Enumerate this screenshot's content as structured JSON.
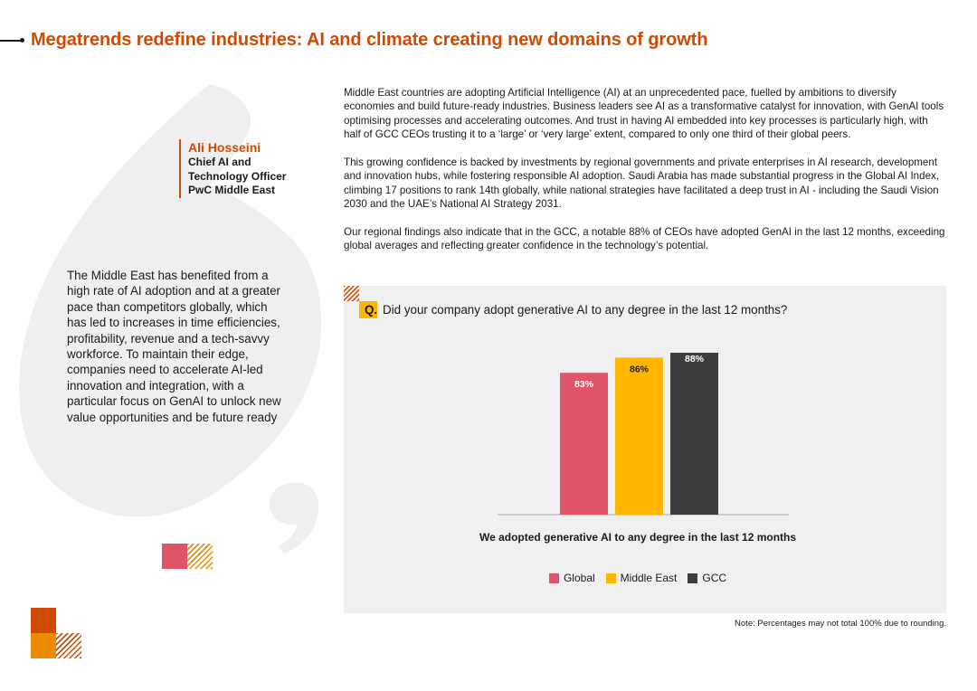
{
  "header": {
    "title": "Megatrends redefine industries: AI and climate creating new domains of growth"
  },
  "speaker": {
    "name": "Ali Hosseini",
    "role_lines": [
      "Chief AI and",
      "Technology Officer",
      "PwC Middle East"
    ]
  },
  "quote": {
    "text": "The Middle East has benefited from a high rate of AI adoption and at a greater pace than competitors globally, which has led to increases in time efficiencies, profitability, revenue and a tech-savvy workforce. To maintain their edge, companies need to accelerate AI-led innovation and integration, with a particular focus on GenAI to unlock new value opportunities and be future ready"
  },
  "body": {
    "paragraphs": [
      "Middle East countries are adopting Artificial Intelligence (AI) at an unprecedented pace, fuelled by ambitions to diversify economies and build future-ready industries. Business leaders see AI as a transformative catalyst for innovation, with GenAI tools optimising processes and accelerating outcomes. And trust in having AI embedded into key processes is particularly high, with half of GCC CEOs trusting it to a ‘large’ or ‘very large’ extent, compared to only one third of their global peers.",
      "This growing confidence is backed by investments by regional governments and private enterprises in AI research, development and innovation hubs, while fostering responsible AI adoption. Saudi Arabia has made substantial progress in the Global AI Index, climbing 17 positions to rank 14th globally, while national strategies have facilitated a deep trust in AI - including the Saudi Vision 2030 and the UAE’s National AI Strategy 2031.",
      "Our regional findings also indicate that in the GCC, a notable 88% of CEOs have adopted GenAI in the last 12 months, exceeding global averages and reflecting greater confidence in the technology’s potential."
    ]
  },
  "question": {
    "mark": "Q.",
    "text": "Did your company adopt generative AI to any degree in the last 12 months?"
  },
  "chart_data": {
    "type": "bar",
    "title": "",
    "xlabel": "We adopted generative AI to any degree in the last 12 months",
    "ylabel": "",
    "ylim": [
      0,
      100
    ],
    "grid": false,
    "legend_position": "bottom",
    "categories": [
      "We adopted generative AI to any degree in the last 12 months"
    ],
    "series": [
      {
        "name": "Global",
        "values": [
          83
        ],
        "label": "83%",
        "color": "#e0546a"
      },
      {
        "name": "Middle East",
        "values": [
          86
        ],
        "label": "86%",
        "color": "#ffb600"
      },
      {
        "name": "GCC",
        "values": [
          88
        ],
        "label": "88%",
        "color": "#3d3d3d"
      }
    ]
  },
  "note": "Note: Percentages may not total 100% due to rounding.",
  "colors": {
    "accent": "#d04a02",
    "quote_shape": "#efefef",
    "panel": "#f0f0f0"
  }
}
